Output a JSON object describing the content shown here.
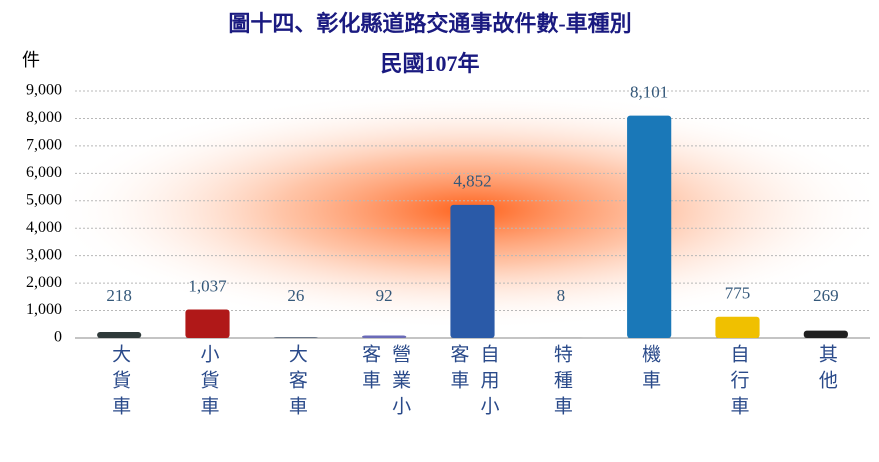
{
  "chart_data": {
    "type": "bar",
    "title": "圖十四、彰化縣道路交通事故件數-車種別",
    "subtitle": "民國107年",
    "y_label": "件",
    "categories": [
      "大貨車",
      "小貨車",
      "大客車",
      "營業小客車",
      "自用小客車",
      "特種車",
      "機車",
      "自行車",
      "其他"
    ],
    "values": [
      218,
      1037,
      26,
      92,
      4852,
      8,
      8101,
      775,
      269
    ],
    "value_labels": [
      "218",
      "1,037",
      "26",
      "92",
      "4,852",
      "8",
      "8,101",
      "775",
      "269"
    ],
    "colors": [
      "#2f3a3a",
      "#b01818",
      "#3a4a60",
      "#6a6ab8",
      "#2a5aa8",
      "#707070",
      "#1a78b8",
      "#f0c000",
      "#202020"
    ],
    "ylim": [
      0,
      9000
    ],
    "yticks": [
      0,
      {
        "value": 1000,
        "label": "1,000"
      },
      {
        "value": 2000,
        "label": "2,000"
      },
      {
        "value": 3000,
        "label": "3,000"
      },
      {
        "value": 4000,
        "label": "4,000"
      },
      {
        "value": 5000,
        "label": "5,000"
      },
      {
        "value": 6000,
        "label": "6,000"
      },
      {
        "value": 7000,
        "label": "7,000"
      },
      {
        "value": 8000,
        "label": "8,000"
      },
      {
        "value": 9000,
        "label": "9,000"
      }
    ],
    "grid": true
  }
}
